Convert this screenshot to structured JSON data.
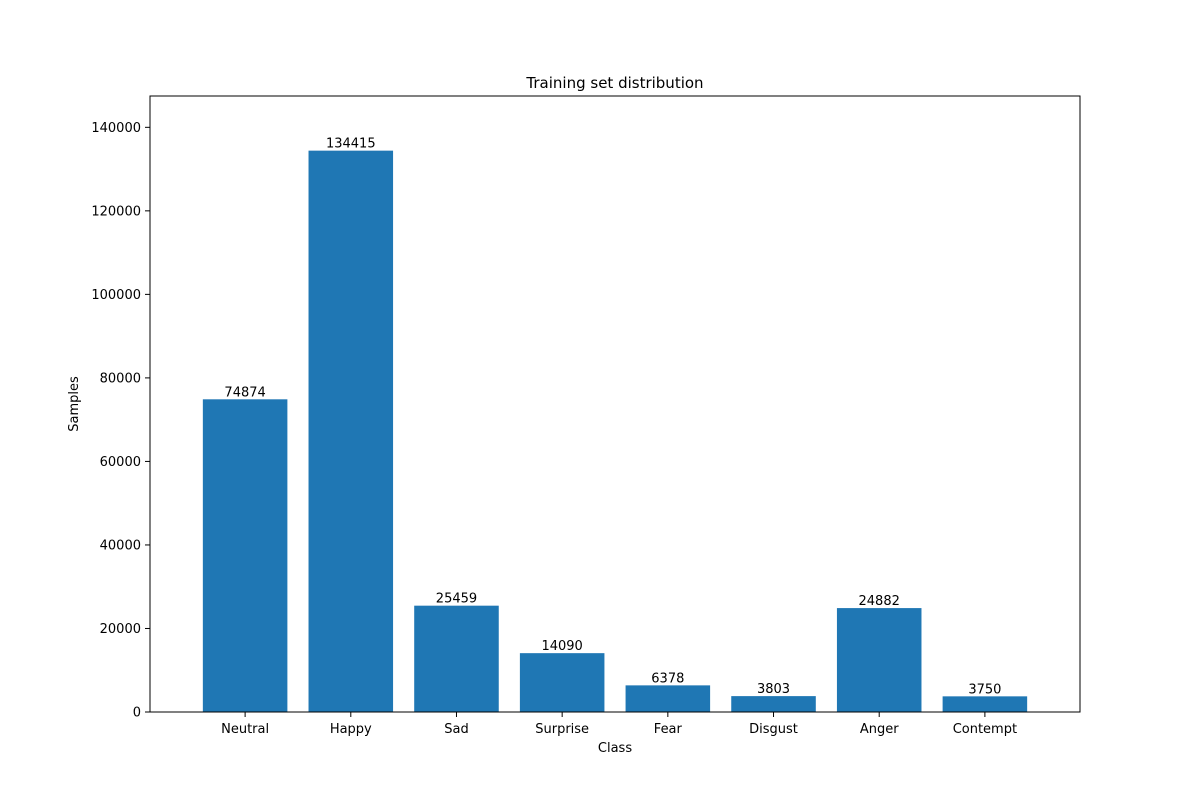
{
  "chart_data": {
    "type": "bar",
    "title": "Training set distribution",
    "xlabel": "Class",
    "ylabel": "Samples",
    "categories": [
      "Neutral",
      "Happy",
      "Sad",
      "Surprise",
      "Fear",
      "Disgust",
      "Anger",
      "Contempt"
    ],
    "values": [
      74874,
      134415,
      25459,
      14090,
      6378,
      3803,
      24882,
      3750
    ],
    "data_labels": [
      "74874",
      "134415",
      "25459",
      "14090",
      "6378",
      "3803",
      "24882",
      "3750"
    ],
    "ylim": [
      0,
      147500
    ],
    "yticks": [
      0,
      20000,
      40000,
      60000,
      80000,
      100000,
      120000,
      140000
    ],
    "ytick_labels": [
      "0",
      "20000",
      "40000",
      "60000",
      "80000",
      "100000",
      "120000",
      "140000"
    ],
    "grid": false,
    "bar_color": "#1f77b4"
  }
}
